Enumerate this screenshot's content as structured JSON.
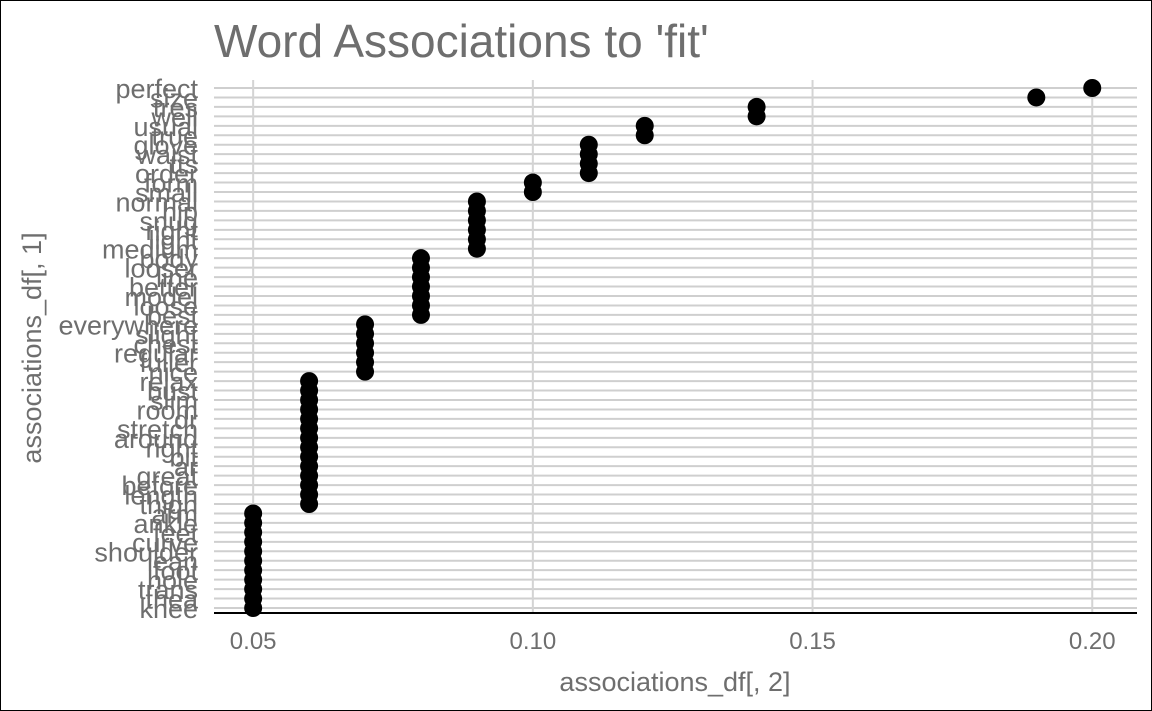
{
  "chart_data": {
    "type": "scatter",
    "title": "Word Associations to 'fit'",
    "xlabel": "associations_df[, 2]",
    "ylabel": "associations_df[, 1]",
    "xlim": [
      0.043,
      0.208
    ],
    "xticks": [
      0.05,
      0.1,
      0.15,
      0.2
    ],
    "xtick_labels": [
      "0.05",
      "0.10",
      "0.15",
      "0.20"
    ],
    "grid": true,
    "legend": "none",
    "point_color": "#000000",
    "categories": [
      "perfect",
      "size",
      "tres",
      "well",
      "usual",
      "true",
      "glove",
      "waist",
      "tts",
      "order",
      "form",
      "small",
      "normal",
      "hip",
      "snug",
      "right",
      "light",
      "medium",
      "body",
      "looser",
      "line",
      "better",
      "model",
      "loose",
      "best",
      "everywhere",
      "slight",
      "chest",
      "regular",
      "fuller",
      "nice",
      "relax",
      "bust",
      "slim",
      "room",
      "dr",
      "stretch",
      "around",
      "right",
      "bit",
      "ar",
      "great",
      "before",
      "length",
      "thigh",
      "arm",
      "ankle",
      "feet",
      "curve",
      "shoulder",
      "lean",
      "foot",
      "hole",
      "trans",
      "thea",
      "knee"
    ],
    "values": [
      0.2,
      0.19,
      0.14,
      0.14,
      0.12,
      0.12,
      0.11,
      0.11,
      0.11,
      0.11,
      0.1,
      0.1,
      0.09,
      0.09,
      0.09,
      0.09,
      0.09,
      0.09,
      0.08,
      0.08,
      0.08,
      0.08,
      0.08,
      0.08,
      0.08,
      0.07,
      0.07,
      0.07,
      0.07,
      0.07,
      0.07,
      0.06,
      0.06,
      0.06,
      0.06,
      0.06,
      0.06,
      0.06,
      0.06,
      0.06,
      0.06,
      0.06,
      0.06,
      0.06,
      0.06,
      0.05,
      0.05,
      0.05,
      0.05,
      0.05,
      0.05,
      0.05,
      0.05,
      0.05,
      0.05,
      0.05
    ]
  }
}
